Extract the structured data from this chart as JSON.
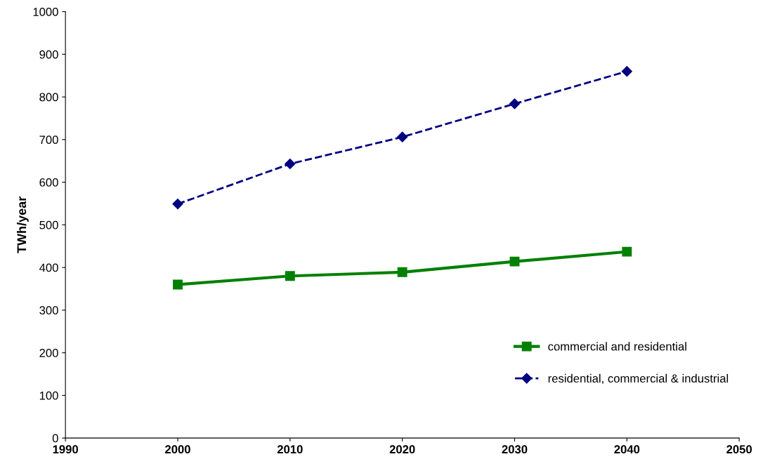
{
  "chart_data": {
    "type": "line",
    "ylabel": "TWh/year",
    "x": [
      2000,
      2010,
      2020,
      2030,
      2040
    ],
    "xlim": [
      1990,
      2050
    ],
    "xticks": [
      1990,
      2000,
      2010,
      2020,
      2030,
      2040,
      2050
    ],
    "ylim": [
      0,
      1000
    ],
    "yticks": [
      0,
      100,
      200,
      300,
      400,
      500,
      600,
      700,
      800,
      900,
      1000
    ],
    "grid": false,
    "legend": "lower right",
    "series": [
      {
        "name": "commercial and residential",
        "color": "#008000",
        "values": [
          360,
          380,
          389,
          414,
          437
        ],
        "marker": "square",
        "line_style": "solid"
      },
      {
        "name": "residential, commercial & industrial",
        "color": "#000080",
        "values": [
          549,
          643,
          706,
          784,
          860
        ],
        "marker": "diamond",
        "line_style": "dashed"
      }
    ]
  }
}
